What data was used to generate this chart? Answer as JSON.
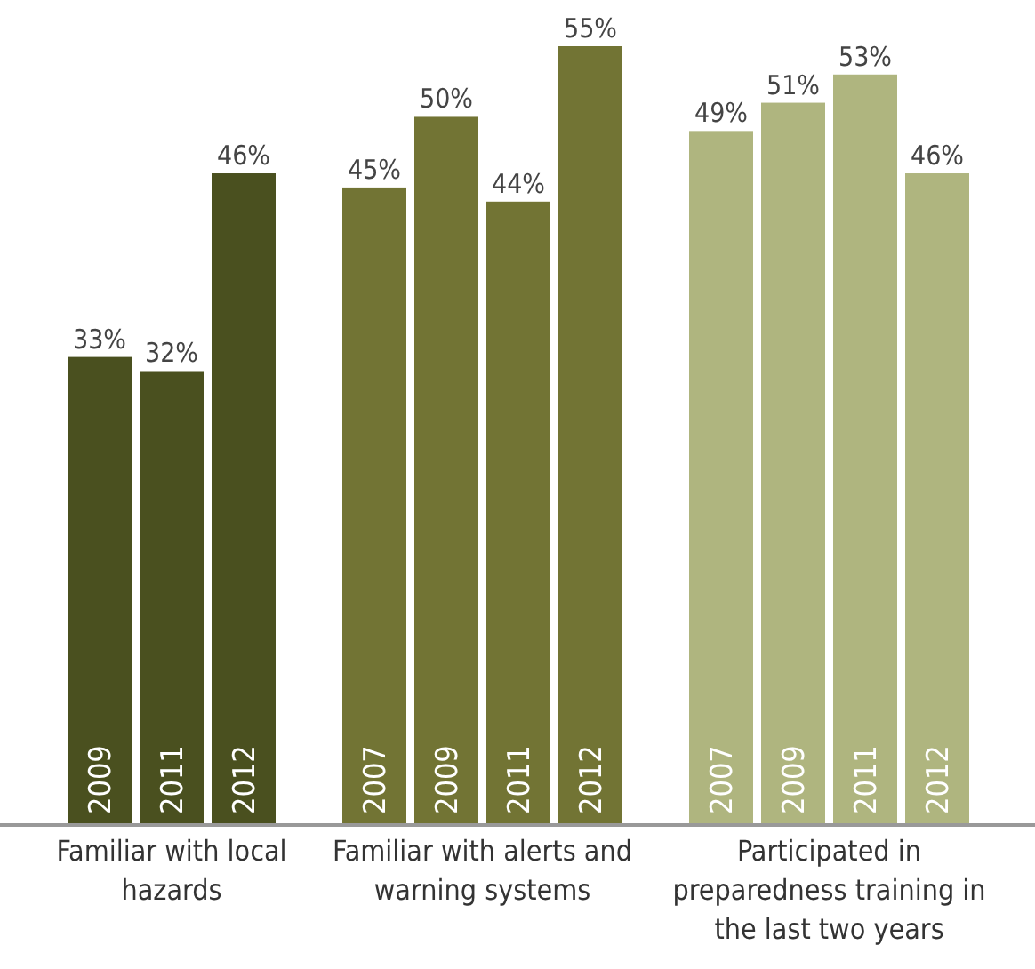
{
  "chart_data": {
    "type": "bar",
    "categories": [
      "Familiar with local hazards",
      "Familiar with alerts and warning systems",
      "Participated in preparedness training in the last two years"
    ],
    "series": [
      {
        "name": "2007",
        "colors": [
          null,
          "#727434",
          "#afb57f"
        ],
        "values": [
          null,
          45,
          49
        ],
        "value_labels": [
          null,
          "45%",
          "49%"
        ]
      },
      {
        "name": "2009",
        "colors": [
          "#4a501f",
          "#727434",
          "#afb57f"
        ],
        "values": [
          33,
          50,
          51
        ],
        "value_labels": [
          "33%",
          "50%",
          "51%"
        ]
      },
      {
        "name": "2011",
        "colors": [
          "#4a501f",
          "#727434",
          "#afb57f"
        ],
        "values": [
          32,
          44,
          53
        ],
        "value_labels": [
          "32%",
          "44%",
          "53%"
        ]
      },
      {
        "name": "2012",
        "colors": [
          "#4a501f",
          "#727434",
          "#afb57f"
        ],
        "values": [
          46,
          55,
          46
        ],
        "value_labels": [
          "46%",
          "55%",
          "46%"
        ]
      }
    ]
  }
}
